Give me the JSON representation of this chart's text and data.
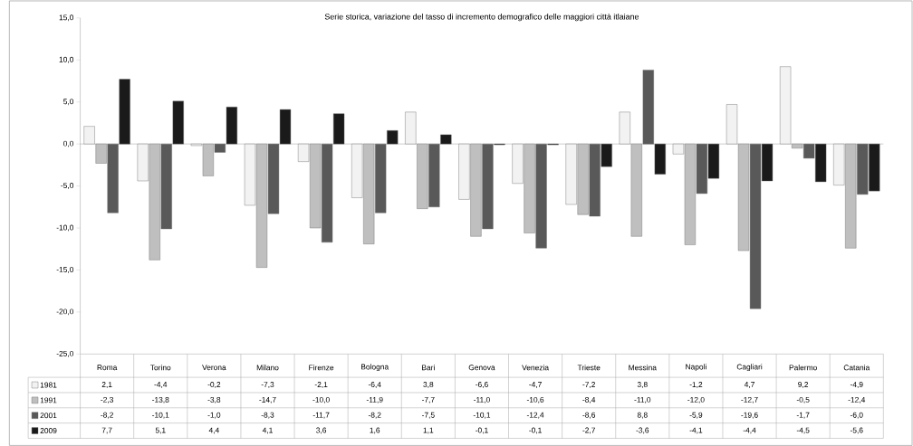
{
  "chart_data": {
    "type": "bar",
    "title": "Serie storica, variazione del tasso di incremento demografico delle maggiori città itlaiane",
    "categories": [
      "Roma",
      "Torino",
      "Verona",
      "Milano",
      "Firenze",
      "Bologna",
      "Bari",
      "Genova",
      "Venezia",
      "Trieste",
      "Messina",
      "Napoli",
      "Cagliari",
      "Palermo",
      "Catania"
    ],
    "series": [
      {
        "name": "1981",
        "color": "#f2f2f2",
        "values": [
          2.1,
          -4.4,
          -0.2,
          -7.3,
          -2.1,
          -6.4,
          3.8,
          -6.6,
          -4.7,
          -7.2,
          3.8,
          -1.2,
          4.7,
          9.2,
          -4.9
        ],
        "value_labels": [
          "2,1",
          "-4,4",
          "-0,2",
          "-7,3",
          "-2,1",
          "-6,4",
          "3,8",
          "-6,6",
          "-4,7",
          "-7,2",
          "3,8",
          "-1,2",
          "4,7",
          "9,2",
          "-4,9"
        ]
      },
      {
        "name": "1991",
        "color": "#bfbfbf",
        "values": [
          -2.3,
          -13.8,
          -3.8,
          -14.7,
          -10.0,
          -11.9,
          -7.7,
          -11.0,
          -10.6,
          -8.4,
          -11.0,
          -12.0,
          -12.7,
          -0.5,
          -12.4
        ],
        "value_labels": [
          "-2,3",
          "-13,8",
          "-3,8",
          "-14,7",
          "-10,0",
          "-11,9",
          "-7,7",
          "-11,0",
          "-10,6",
          "-8,4",
          "-11,0",
          "-12,0",
          "-12,7",
          "-0,5",
          "-12,4"
        ]
      },
      {
        "name": "2001",
        "color": "#595959",
        "values": [
          -8.2,
          -10.1,
          -1.0,
          -8.3,
          -11.7,
          -8.2,
          -7.5,
          -10.1,
          -12.4,
          -8.6,
          8.8,
          -5.9,
          -19.6,
          -1.7,
          -6.0
        ],
        "value_labels": [
          "-8,2",
          "-10,1",
          "-1,0",
          "-8,3",
          "-11,7",
          "-8,2",
          "-7,5",
          "-10,1",
          "-12,4",
          "-8,6",
          "8,8",
          "-5,9",
          "-19,6",
          "-1,7",
          "-6,0"
        ]
      },
      {
        "name": "2009",
        "color": "#1a1a1a",
        "values": [
          7.7,
          5.1,
          4.4,
          4.1,
          3.6,
          1.6,
          1.1,
          -0.1,
          -0.1,
          -2.7,
          -3.6,
          -4.1,
          -4.4,
          -4.5,
          -5.6
        ],
        "value_labels": [
          "7,7",
          "5,1",
          "4,4",
          "4,1",
          "3,6",
          "1,6",
          "1,1",
          "-0,1",
          "-0,1",
          "-2,7",
          "-3,6",
          "-4,1",
          "-4,4",
          "-4,5",
          "-5,6"
        ]
      }
    ],
    "ylim": [
      -25,
      15
    ],
    "yticks": [
      {
        "value": -25,
        "label": "-25,0"
      },
      {
        "value": -20,
        "label": "-20,0"
      },
      {
        "value": -15,
        "label": "-15,0"
      },
      {
        "value": -10,
        "label": "-10,0"
      },
      {
        "value": -5,
        "label": "-5,0"
      },
      {
        "value": 0,
        "label": "0,0"
      },
      {
        "value": 5,
        "label": "5,0"
      },
      {
        "value": 10,
        "label": "10,0"
      },
      {
        "value": 15,
        "label": "15,0"
      }
    ],
    "legend": "bottom"
  }
}
